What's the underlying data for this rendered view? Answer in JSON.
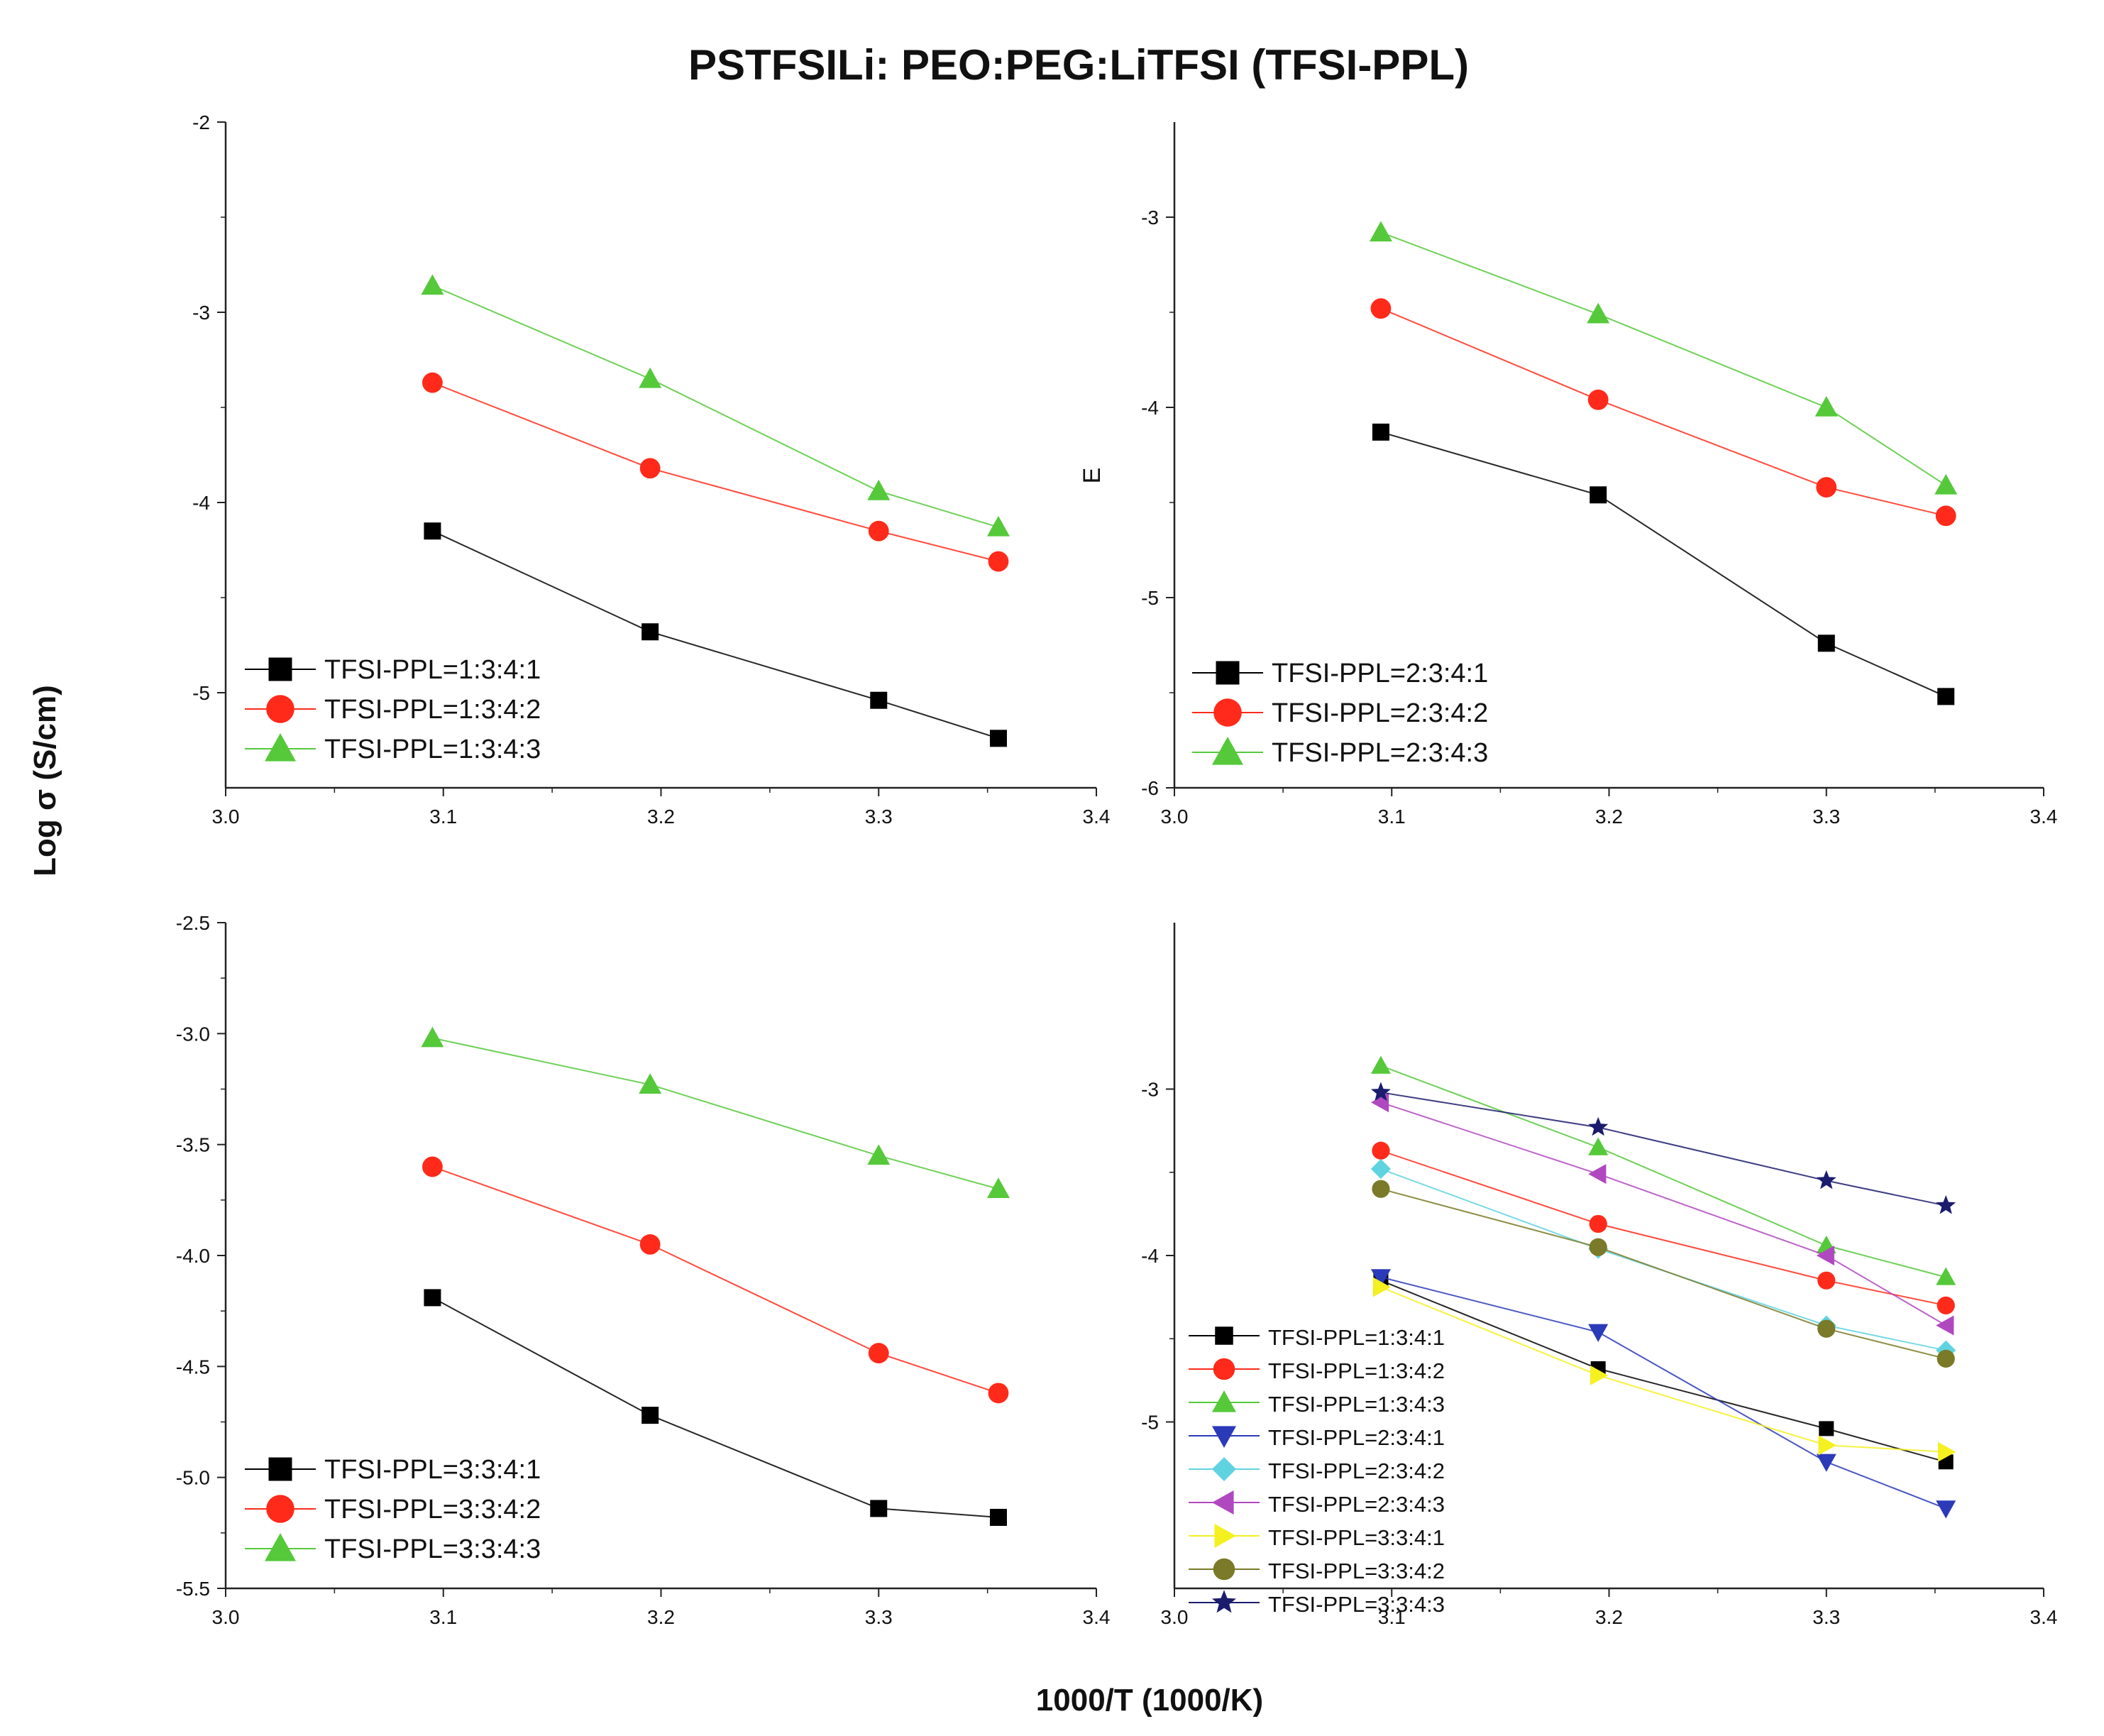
{
  "figure": {
    "title": "PSTFSILi: PEO:PEG:LiTFSI (TFSI-PPL)",
    "ylabel": "Log σ (S/cm)",
    "xlabel": "1000/T (1000/K)"
  },
  "colors": {
    "black": "#000000",
    "red": "#ff2a1a",
    "green": "#55c93a",
    "blue": "#2b3ab8",
    "cyan": "#5fd4e0",
    "magenta": "#b048c0",
    "yellow": "#f5f020",
    "olive": "#7a7a28",
    "navy": "#1c1c6e"
  },
  "chart_data": [
    {
      "type": "line",
      "panel": "top-left",
      "x": [
        3.095,
        3.195,
        3.3,
        3.355
      ],
      "xlim": [
        3.0,
        3.4
      ],
      "ylim": [
        -5.5,
        -2.0
      ],
      "xticks": [
        "3.0",
        "3.1",
        "3.2",
        "3.3",
        "3.4"
      ],
      "yticks": [
        {
          "v": -2,
          "t": "-2"
        },
        {
          "v": -3,
          "t": "-3"
        },
        {
          "v": -4,
          "t": "-4"
        },
        {
          "v": -5,
          "t": "-5"
        }
      ],
      "legend_position": "bottom-left",
      "series": [
        {
          "name": "TFSI-PPL=1:3:4:1",
          "marker": "square",
          "color": "black",
          "values": [
            -4.15,
            -4.68,
            -5.04,
            -5.24
          ]
        },
        {
          "name": "TFSI-PPL=1:3:4:2",
          "marker": "circle",
          "color": "red",
          "values": [
            -3.37,
            -3.82,
            -4.15,
            -4.31
          ]
        },
        {
          "name": "TFSI-PPL=1:3:4:3",
          "marker": "triangle-up",
          "color": "green",
          "values": [
            -2.86,
            -3.35,
            -3.94,
            -4.13
          ]
        }
      ]
    },
    {
      "type": "line",
      "panel": "top-right",
      "x": [
        3.095,
        3.195,
        3.3,
        3.355
      ],
      "xlim": [
        3.0,
        3.4
      ],
      "ylim": [
        -6.0,
        -2.5
      ],
      "xticks": [
        "3.0",
        "3.1",
        "3.2",
        "3.3",
        "3.4"
      ],
      "yticks": [
        {
          "v": -3,
          "t": "-3"
        },
        {
          "v": -4,
          "t": "-4"
        },
        {
          "v": -5,
          "t": "-5"
        },
        {
          "v": -6,
          "t": "-6"
        }
      ],
      "axis_text": "E",
      "legend_position": "bottom-left",
      "series": [
        {
          "name": "TFSI-PPL=2:3:4:1",
          "marker": "square",
          "color": "black",
          "values": [
            -4.13,
            -4.46,
            -5.24,
            -5.52
          ]
        },
        {
          "name": "TFSI-PPL=2:3:4:2",
          "marker": "circle",
          "color": "red",
          "values": [
            -3.48,
            -3.96,
            -4.42,
            -4.57
          ]
        },
        {
          "name": "TFSI-PPL=2:3:4:3",
          "marker": "triangle-up",
          "color": "green",
          "values": [
            -3.08,
            -3.51,
            -4.0,
            -4.41
          ]
        }
      ]
    },
    {
      "type": "line",
      "panel": "bottom-left",
      "x": [
        3.095,
        3.195,
        3.3,
        3.355
      ],
      "xlim": [
        3.0,
        3.4
      ],
      "ylim": [
        -5.5,
        -2.5
      ],
      "xticks": [
        "3.0",
        "3.1",
        "3.2",
        "3.3",
        "3.4"
      ],
      "yticks": [
        {
          "v": -2.5,
          "t": "-2.5"
        },
        {
          "v": -3.0,
          "t": "-3.0"
        },
        {
          "v": -3.5,
          "t": "-3.5"
        },
        {
          "v": -4.0,
          "t": "-4.0"
        },
        {
          "v": -4.5,
          "t": "-4.5"
        },
        {
          "v": -5.0,
          "t": "-5.0"
        },
        {
          "v": -5.5,
          "t": "-5.5"
        }
      ],
      "legend_position": "bottom-left",
      "series": [
        {
          "name": "TFSI-PPL=3:3:4:1",
          "marker": "square",
          "color": "black",
          "values": [
            -4.19,
            -4.72,
            -5.14,
            -5.18
          ]
        },
        {
          "name": "TFSI-PPL=3:3:4:2",
          "marker": "circle",
          "color": "red",
          "values": [
            -3.6,
            -3.95,
            -4.44,
            -4.62
          ]
        },
        {
          "name": "TFSI-PPL=3:3:4:3",
          "marker": "triangle-up",
          "color": "green",
          "values": [
            -3.02,
            -3.23,
            -3.55,
            -3.7
          ]
        }
      ]
    },
    {
      "type": "line",
      "panel": "bottom-right",
      "x": [
        3.095,
        3.195,
        3.3,
        3.355
      ],
      "xlim": [
        3.0,
        3.4
      ],
      "ylim": [
        -6.0,
        -2.0
      ],
      "xticks": [
        "3.0",
        "3.1",
        "3.2",
        "3.3",
        "3.4"
      ],
      "yticks": [
        {
          "v": -3,
          "t": "-3"
        },
        {
          "v": -4,
          "t": "-4"
        },
        {
          "v": -5,
          "t": "-5"
        }
      ],
      "legend_position": "bottom-left",
      "series": [
        {
          "name": "TFSI-PPL=1:3:4:1",
          "marker": "square",
          "color": "black",
          "values": [
            -4.15,
            -4.68,
            -5.04,
            -5.24
          ]
        },
        {
          "name": "TFSI-PPL=1:3:4:2",
          "marker": "circle",
          "color": "red",
          "values": [
            -3.37,
            -3.81,
            -4.15,
            -4.3
          ]
        },
        {
          "name": "TFSI-PPL=1:3:4:3",
          "marker": "triangle-up",
          "color": "green",
          "values": [
            -2.86,
            -3.35,
            -3.94,
            -4.13
          ]
        },
        {
          "name": "TFSI-PPL=2:3:4:1",
          "marker": "triangle-down",
          "color": "blue",
          "values": [
            -4.13,
            -4.46,
            -5.24,
            -5.52
          ]
        },
        {
          "name": "TFSI-PPL=2:3:4:2",
          "marker": "diamond",
          "color": "cyan",
          "values": [
            -3.48,
            -3.96,
            -4.42,
            -4.57
          ]
        },
        {
          "name": "TFSI-PPL=2:3:4:3",
          "marker": "triangle-left",
          "color": "magenta",
          "values": [
            -3.08,
            -3.51,
            -4.0,
            -4.42
          ]
        },
        {
          "name": "TFSI-PPL=3:3:4:1",
          "marker": "triangle-right",
          "color": "yellow",
          "values": [
            -4.19,
            -4.72,
            -5.14,
            -5.18
          ]
        },
        {
          "name": "TFSI-PPL=3:3:4:2",
          "marker": "circle",
          "color": "olive",
          "values": [
            -3.6,
            -3.95,
            -4.44,
            -4.62
          ]
        },
        {
          "name": "TFSI-PPL=3:3:4:3",
          "marker": "star",
          "color": "navy",
          "values": [
            -3.02,
            -3.23,
            -3.55,
            -3.7
          ]
        }
      ]
    }
  ]
}
